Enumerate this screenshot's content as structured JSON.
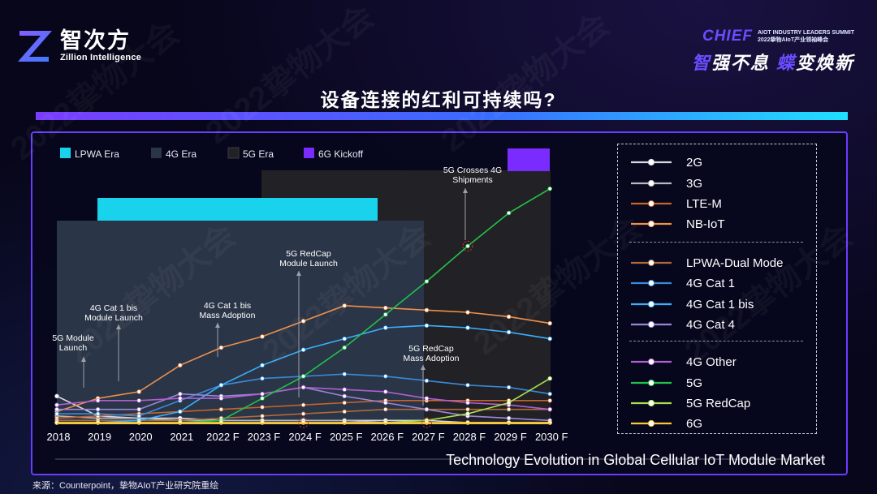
{
  "header": {
    "logo_cn": "智次方",
    "logo_en": "Zillion Intelligence",
    "event_name": "CHIEF",
    "event_sub_line1": "AIOT INDUSTRY LEADERS SUMMIT",
    "event_sub_line2": "2022挚物AIoT产业领袖峰会",
    "slogan_part1": "智",
    "slogan_part2": "强不息 ",
    "slogan_part3": "蝶",
    "slogan_part4": "变焕新"
  },
  "page_title": "设备连接的红利可持续吗?",
  "source": "来源：Counterpoint，挚物AIoT产业研究院重绘",
  "watermark": "2022挚物大会",
  "colors": {
    "accent_purple": "#6a3cff",
    "lpwa": "#19d3ec",
    "era4g": "#2a3547",
    "era5g": "#222226",
    "era6g": "#7a2cff"
  },
  "chart_data": {
    "type": "line",
    "title": "Technology Evolution in Global Cellular IoT Module Market",
    "x": [
      "2018",
      "2019",
      "2020",
      "2021",
      "2022 F",
      "2023 F",
      "2024 F",
      "2025 F",
      "2026 F",
      "2027 F",
      "2028 F",
      "2029 F",
      "2030 F"
    ],
    "ylim": [
      0,
      100
    ],
    "grid": false,
    "legend_position": "right",
    "eras": [
      {
        "label": "PLWA Era",
        "display_label": "LPWA Era",
        "color": "#19d3ec"
      },
      {
        "label": "4G Era",
        "color": "#2a3547"
      },
      {
        "label": "5G Era",
        "color": "#222226"
      },
      {
        "label": "6G Kickoff",
        "color": "#7a2cff"
      }
    ],
    "series": [
      {
        "name": "2G",
        "color": "#d8d8e0",
        "values": [
          12,
          3,
          2,
          2,
          1,
          1,
          1,
          1,
          1,
          1,
          0,
          0,
          0
        ]
      },
      {
        "name": "3G",
        "color": "#b8b8c0",
        "values": [
          3,
          2,
          2,
          1,
          1,
          1,
          1,
          1,
          0,
          0,
          0,
          0,
          0
        ]
      },
      {
        "name": "LTE-M",
        "color": "#c8642a",
        "values": [
          2,
          3,
          4,
          5,
          6,
          7,
          8,
          9,
          10,
          10,
          10,
          10,
          10
        ]
      },
      {
        "name": "NB-IoT",
        "color": "#f0904a",
        "values": [
          5,
          11,
          14,
          26,
          34,
          39,
          46,
          53,
          52,
          51,
          50,
          48,
          45
        ]
      },
      {
        "name": "LPWA-Dual Mode",
        "color": "#b06a3a",
        "values": [
          1,
          1,
          1,
          1,
          2,
          3,
          4,
          5,
          6,
          6,
          6,
          6,
          6
        ]
      },
      {
        "name": "4G Cat 1",
        "color": "#3a8ad8",
        "values": [
          4,
          4,
          3,
          10,
          17,
          20,
          21,
          22,
          21,
          19,
          17,
          16,
          13
        ]
      },
      {
        "name": "4G Cat 1 bis",
        "color": "#3ab0ff",
        "values": [
          0,
          0,
          1,
          5,
          17,
          26,
          33,
          38,
          43,
          44,
          43,
          41,
          38
        ]
      },
      {
        "name": "4G Cat 4",
        "color": "#9a86d8",
        "values": [
          6,
          6,
          6,
          13,
          12,
          13,
          16,
          12,
          9,
          6,
          3,
          2,
          1
        ]
      },
      {
        "name": "4G Other",
        "color": "#b060d0",
        "values": [
          8,
          10,
          10,
          11,
          11,
          13,
          16,
          15,
          14,
          11,
          9,
          8,
          6
        ]
      },
      {
        "name": "5G",
        "color": "#22c24a",
        "values": [
          0,
          0,
          0,
          0,
          1,
          11,
          21,
          34,
          49,
          64,
          80,
          95,
          106
        ]
      },
      {
        "name": "5G RedCap",
        "color": "#a8e050",
        "values": [
          0,
          0,
          0,
          0,
          0,
          0,
          0,
          0,
          0,
          1,
          4,
          9,
          20
        ]
      },
      {
        "name": "6G",
        "color": "#f8c83a",
        "values": [
          0,
          0,
          0,
          0,
          0,
          0,
          0,
          0,
          0,
          0,
          0,
          0,
          0
        ]
      }
    ],
    "annotations": [
      {
        "lines": [
          "5G Module",
          "Launch"
        ]
      },
      {
        "lines": [
          "4G Cat 1 bis",
          "Module Launch"
        ]
      },
      {
        "lines": [
          "4G Cat 1 bis",
          "Mass Adoption"
        ]
      },
      {
        "lines": [
          "5G RedCap",
          "Module Launch"
        ]
      },
      {
        "lines": [
          "5G RedCap",
          "Mass Adoption"
        ]
      },
      {
        "lines": [
          "5G Crosses 4G",
          "Shipments"
        ]
      }
    ]
  }
}
